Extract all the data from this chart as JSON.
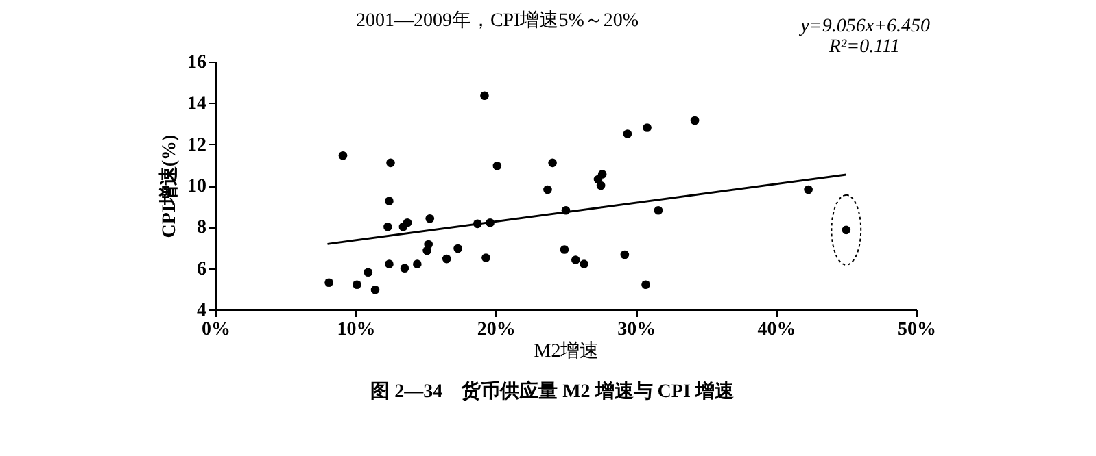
{
  "chart_data": {
    "type": "scatter",
    "title": "2001—2009年，CPI增速5%～20%",
    "xlabel": "M2增速",
    "ylabel": "CPI增速(%)",
    "annotations": [
      "y=9.056x+6.450",
      "R²=0.111",
      "图 2—34　货币供应量 M2 增速与 CPI 增速"
    ],
    "xlim": [
      0,
      0.5
    ],
    "xticks": [
      {
        "value": 0,
        "label": "0%"
      },
      {
        "value": 0.1,
        "label": "10%"
      },
      {
        "value": 0.2,
        "label": "20%"
      },
      {
        "value": 0.3,
        "label": "30%"
      },
      {
        "value": 0.4,
        "label": "40%"
      },
      {
        "value": 0.5,
        "label": "50%"
      }
    ],
    "ylim": [
      4,
      16
    ],
    "yticks": [
      4,
      6,
      8,
      10,
      12,
      14,
      16
    ],
    "grid": false,
    "series": [
      {
        "marker": "circle",
        "color": "#000000",
        "x": [
          0.081,
          0.091,
          0.101,
          0.109,
          0.114,
          0.124,
          0.123,
          0.124,
          0.125,
          0.134,
          0.137,
          0.135,
          0.144,
          0.153,
          0.152,
          0.151,
          0.165,
          0.173,
          0.187,
          0.196,
          0.193,
          0.192,
          0.201,
          0.237,
          0.2405,
          0.25,
          0.249,
          0.257,
          0.263,
          0.273,
          0.276,
          0.275,
          0.294,
          0.292,
          0.308,
          0.307,
          0.316,
          0.342,
          0.423,
          0.45
        ],
        "values": [
          5.3,
          11.45,
          5.2,
          5.8,
          4.95,
          6.2,
          8.0,
          9.25,
          11.1,
          8.0,
          8.2,
          6.0,
          6.2,
          8.4,
          7.15,
          6.85,
          6.45,
          6.95,
          8.15,
          8.2,
          6.5,
          14.35,
          10.95,
          9.8,
          11.1,
          8.8,
          6.9,
          6.4,
          6.2,
          10.3,
          10.55,
          10.0,
          12.5,
          6.65,
          12.8,
          5.2,
          8.8,
          13.15,
          9.8,
          7.85
        ]
      },
      {
        "type": "line",
        "color": "#000000",
        "x": [
          0.08,
          0.45
        ],
        "values": [
          7.17,
          10.53
        ],
        "line_style": "solid",
        "marker": "none"
      }
    ]
  }
}
